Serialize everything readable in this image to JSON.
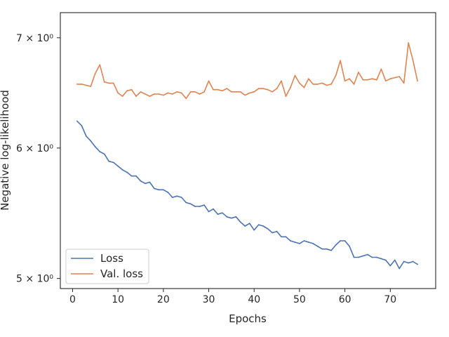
{
  "chart_data": {
    "type": "line",
    "title": "",
    "xlabel": "Epochs",
    "ylabel": "Negative log-likelihood",
    "yscale": "log",
    "xlim": [
      -2.7,
      80.0
    ],
    "ylim": [
      4.93,
      7.25
    ],
    "grid": false,
    "legend_position": "lower-left",
    "x_ticks": [
      0,
      10,
      20,
      30,
      40,
      50,
      60,
      70
    ],
    "y_ticks": [
      {
        "value": 5,
        "label": "5 × 10⁰"
      },
      {
        "value": 6,
        "label": "6 × 10⁰"
      },
      {
        "value": 7,
        "label": "7 × 10⁰"
      }
    ],
    "x": [
      1,
      2,
      3,
      4,
      5,
      6,
      7,
      8,
      9,
      10,
      11,
      12,
      13,
      14,
      15,
      16,
      17,
      18,
      19,
      20,
      21,
      22,
      23,
      24,
      25,
      26,
      27,
      28,
      29,
      30,
      31,
      32,
      33,
      34,
      35,
      36,
      37,
      38,
      39,
      40,
      41,
      42,
      43,
      44,
      45,
      46,
      47,
      48,
      49,
      50,
      51,
      52,
      53,
      54,
      55,
      56,
      57,
      58,
      59,
      60,
      61,
      62,
      63,
      64,
      65,
      66,
      67,
      68,
      69,
      70,
      71,
      72,
      73,
      74,
      75,
      76
    ],
    "series": [
      {
        "name": "Loss",
        "color": "#4c72b0",
        "values": [
          6.23,
          6.19,
          6.1,
          6.06,
          6.01,
          5.97,
          5.95,
          5.89,
          5.88,
          5.85,
          5.82,
          5.8,
          5.77,
          5.77,
          5.73,
          5.71,
          5.72,
          5.67,
          5.66,
          5.66,
          5.64,
          5.6,
          5.61,
          5.6,
          5.56,
          5.55,
          5.53,
          5.53,
          5.54,
          5.49,
          5.51,
          5.47,
          5.48,
          5.45,
          5.44,
          5.45,
          5.41,
          5.38,
          5.4,
          5.35,
          5.39,
          5.38,
          5.36,
          5.33,
          5.34,
          5.3,
          5.3,
          5.27,
          5.26,
          5.25,
          5.27,
          5.26,
          5.25,
          5.23,
          5.21,
          5.21,
          5.2,
          5.24,
          5.27,
          5.27,
          5.23,
          5.15,
          5.15,
          5.16,
          5.17,
          5.15,
          5.15,
          5.14,
          5.13,
          5.09,
          5.13,
          5.07,
          5.12,
          5.11,
          5.12,
          5.1
        ]
      },
      {
        "name": "Val. loss",
        "color": "#dd8452",
        "values": [
          6.56,
          6.56,
          6.55,
          6.54,
          6.66,
          6.74,
          6.58,
          6.57,
          6.57,
          6.48,
          6.45,
          6.5,
          6.51,
          6.45,
          6.49,
          6.47,
          6.45,
          6.47,
          6.47,
          6.46,
          6.48,
          6.47,
          6.49,
          6.48,
          6.43,
          6.49,
          6.49,
          6.47,
          6.49,
          6.59,
          6.51,
          6.51,
          6.5,
          6.52,
          6.49,
          6.49,
          6.49,
          6.46,
          6.48,
          6.49,
          6.52,
          6.52,
          6.51,
          6.49,
          6.52,
          6.59,
          6.45,
          6.53,
          6.64,
          6.57,
          6.53,
          6.61,
          6.56,
          6.56,
          6.57,
          6.55,
          6.56,
          6.64,
          6.78,
          6.59,
          6.61,
          6.56,
          6.67,
          6.6,
          6.6,
          6.61,
          6.6,
          6.7,
          6.59,
          6.61,
          6.62,
          6.63,
          6.57,
          6.95,
          6.78,
          6.59
        ]
      }
    ]
  }
}
